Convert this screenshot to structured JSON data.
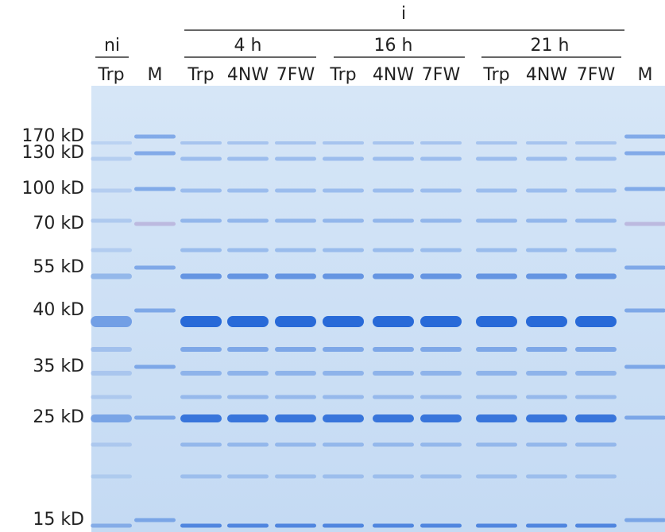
{
  "header": {
    "title": "i",
    "groups": [
      "ni",
      "4 h",
      "16 h",
      "21 h"
    ]
  },
  "lanes": [
    "Trp",
    "M",
    "Trp",
    "4NW",
    "7FW",
    "Trp",
    "4NW",
    "7FW",
    "Trp",
    "4NW",
    "7FW",
    "M"
  ],
  "markers": [
    "170 kD",
    "130 kD",
    "100 kD",
    "70 kD",
    "55 kD",
    "40 kD",
    "35 kD",
    "25 kD",
    "15 kD"
  ]
}
